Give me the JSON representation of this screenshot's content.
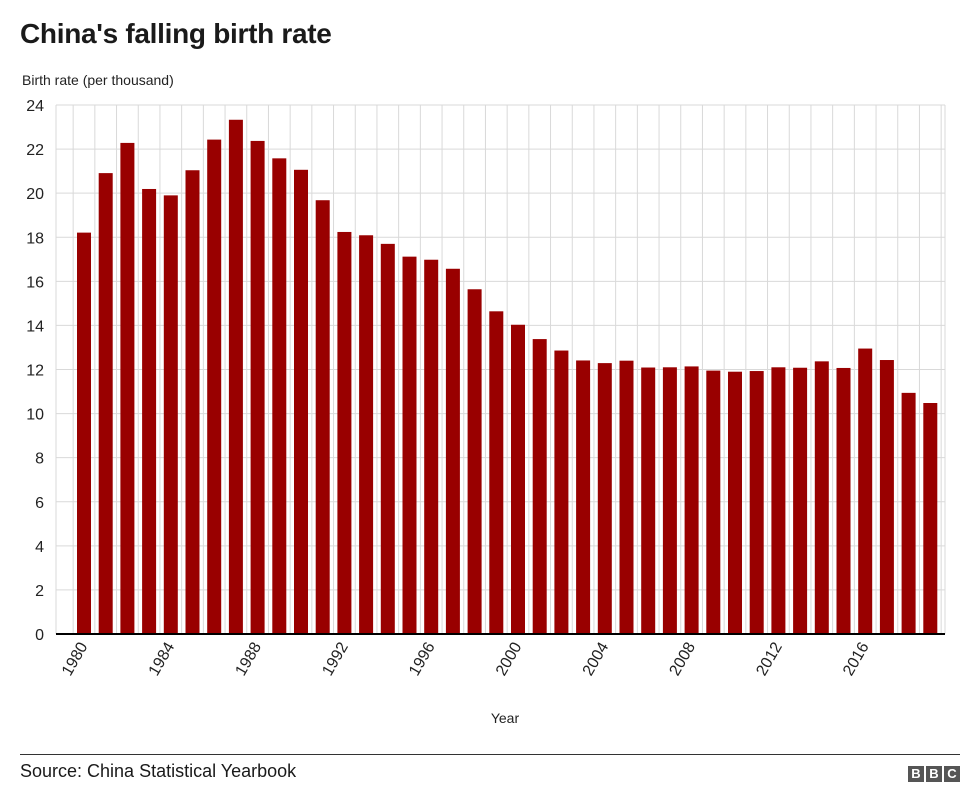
{
  "header": {
    "title": "China's falling birth rate"
  },
  "footer": {
    "source": "Source: China Statistical Yearbook",
    "logo_letters": [
      "B",
      "B",
      "C"
    ]
  },
  "colors": {
    "bar": "#990000",
    "grid": "#d9d9d9",
    "axis": "#000000"
  },
  "chart_data": {
    "type": "bar",
    "title": "China's falling birth rate",
    "ylabel": "Birth rate (per thousand)",
    "xlabel": "Year",
    "ylim": [
      0,
      24
    ],
    "yticks": [
      0,
      2,
      4,
      6,
      8,
      10,
      12,
      14,
      16,
      18,
      20,
      22,
      24
    ],
    "xtick_labels": [
      "1980",
      "1984",
      "1988",
      "1992",
      "1996",
      "2000",
      "2004",
      "2008",
      "2012",
      "2016"
    ],
    "grid": true,
    "categories": [
      1980,
      1981,
      1982,
      1983,
      1984,
      1985,
      1986,
      1987,
      1988,
      1989,
      1990,
      1991,
      1992,
      1993,
      1994,
      1995,
      1996,
      1997,
      1998,
      1999,
      2000,
      2001,
      2002,
      2003,
      2004,
      2005,
      2006,
      2007,
      2008,
      2009,
      2010,
      2011,
      2012,
      2013,
      2014,
      2015,
      2016,
      2017,
      2018,
      2019
    ],
    "values": [
      18.21,
      20.91,
      22.28,
      20.19,
      19.9,
      21.04,
      22.43,
      23.33,
      22.37,
      21.58,
      21.06,
      19.68,
      18.24,
      18.09,
      17.7,
      17.12,
      16.98,
      16.57,
      15.64,
      14.64,
      14.03,
      13.38,
      12.86,
      12.41,
      12.29,
      12.4,
      12.09,
      12.1,
      12.14,
      11.95,
      11.9,
      11.93,
      12.1,
      12.08,
      12.37,
      12.07,
      12.95,
      12.43,
      10.94,
      10.48
    ]
  }
}
